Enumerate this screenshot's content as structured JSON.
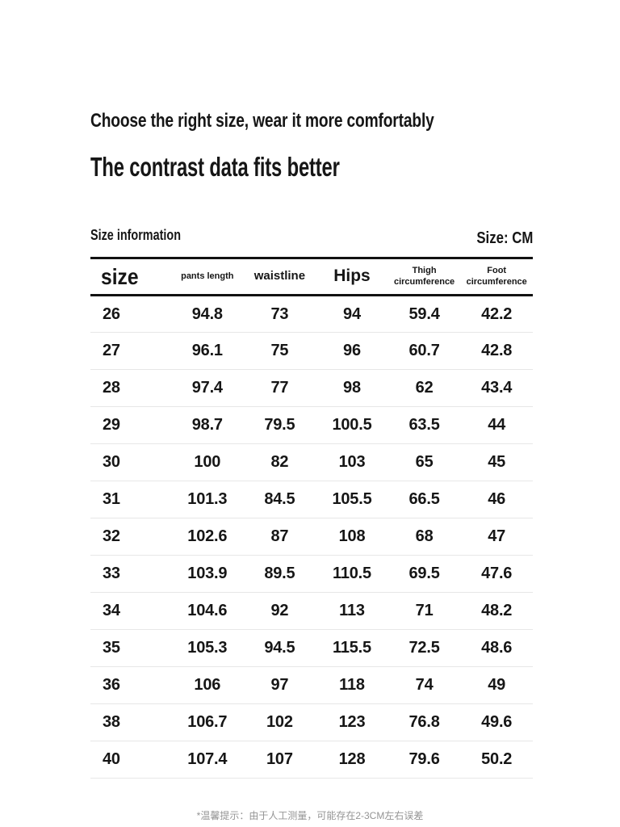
{
  "header": {
    "subtitle": "Choose the right size, wear it more comfortably",
    "title": "The contrast data fits better",
    "section_label": "Size information",
    "unit_label": "Size: CM"
  },
  "table": {
    "columns": [
      {
        "label": "size"
      },
      {
        "label": "pants length"
      },
      {
        "label": "waistline"
      },
      {
        "label": "Hips"
      },
      {
        "label": "Thigh circumference"
      },
      {
        "label": "Foot circumference"
      }
    ],
    "rows": [
      [
        "26",
        "94.8",
        "73",
        "94",
        "59.4",
        "42.2"
      ],
      [
        "27",
        "96.1",
        "75",
        "96",
        "60.7",
        "42.8"
      ],
      [
        "28",
        "97.4",
        "77",
        "98",
        "62",
        "43.4"
      ],
      [
        "29",
        "98.7",
        "79.5",
        "100.5",
        "63.5",
        "44"
      ],
      [
        "30",
        "100",
        "82",
        "103",
        "65",
        "45"
      ],
      [
        "31",
        "101.3",
        "84.5",
        "105.5",
        "66.5",
        "46"
      ],
      [
        "32",
        "102.6",
        "87",
        "108",
        "68",
        "47"
      ],
      [
        "33",
        "103.9",
        "89.5",
        "110.5",
        "69.5",
        "47.6"
      ],
      [
        "34",
        "104.6",
        "92",
        "113",
        "71",
        "48.2"
      ],
      [
        "35",
        "105.3",
        "94.5",
        "115.5",
        "72.5",
        "48.6"
      ],
      [
        "36",
        "106",
        "97",
        "118",
        "74",
        "49"
      ],
      [
        "38",
        "106.7",
        "102",
        "123",
        "76.8",
        "49.6"
      ],
      [
        "40",
        "107.4",
        "107",
        "128",
        "79.6",
        "50.2"
      ]
    ]
  },
  "footer": {
    "note": "*温馨提示：由于人工测量，可能存在2-3CM左右误差"
  },
  "colors": {
    "text": "#161616",
    "rule_heavy": "#111111",
    "rule_light": "#e7e7e7",
    "footnote": "#949494",
    "background": "#ffffff"
  }
}
